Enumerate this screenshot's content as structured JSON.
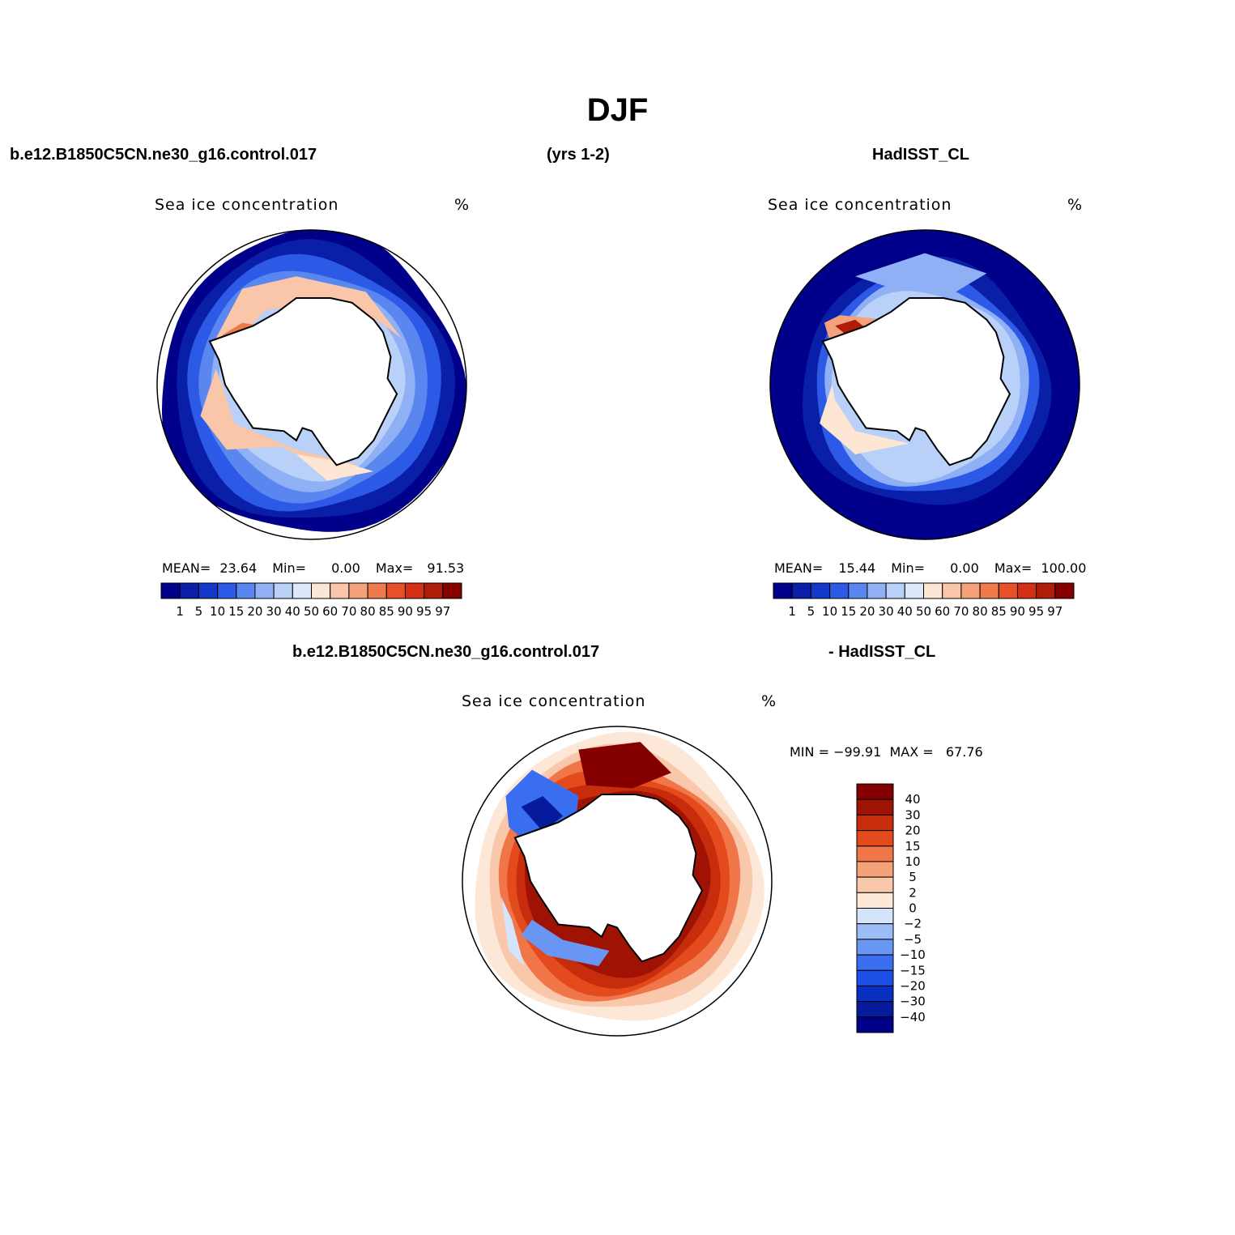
{
  "figure": {
    "title": "DJF",
    "case_name": "b.e12.B1850C5CN.ne30_g16.control.017",
    "period": "(yrs 1-2)",
    "obs_name": "HadISST_CL",
    "diff_case_name": "b.e12.B1850C5CN.ne30_g16.control.017",
    "diff_obs_name": "- HadISST_CL"
  },
  "colors": {
    "seq": [
      "#00008b",
      "#0a1fa8",
      "#1438c8",
      "#2c5ae6",
      "#5a86f0",
      "#8fb0f5",
      "#b9d0f8",
      "#dde9fb",
      "#fde6d3",
      "#f9c6a9",
      "#f5a17b",
      "#ef7b4d",
      "#e8502a",
      "#d42f14",
      "#b01c0a",
      "#850000"
    ],
    "diff": [
      "#00008b",
      "#061b9c",
      "#0a2fc0",
      "#1c4fe6",
      "#3a6ef0",
      "#6a96f3",
      "#9dbdf6",
      "#d4e4fb",
      "#fde8d8",
      "#f9c8aa",
      "#f5a179",
      "#f07548",
      "#e34a1c",
      "#c72c0c",
      "#a01304",
      "#840000"
    ],
    "coast": "#000000",
    "frame": "#000000"
  },
  "chart_data": [
    {
      "type": "heatmap",
      "projection": "south-polar-stereographic",
      "label": "model",
      "variable": "Sea ice concentration",
      "units": "%",
      "stats": {
        "mean_label": "MEAN=",
        "mean": "23.64",
        "min_label": "Min=",
        "min": "0.00",
        "max_label": "Max=",
        "max": "91.53"
      },
      "levels": [
        "1",
        "5",
        "10",
        "15",
        "20",
        "30",
        "40",
        "50",
        "60",
        "70",
        "80",
        "85",
        "90",
        "95",
        "97"
      ],
      "colorbar_orientation": "horizontal",
      "legend_placement": "bottom"
    },
    {
      "type": "heatmap",
      "projection": "south-polar-stereographic",
      "label": "observations",
      "variable": "Sea ice concentration",
      "units": "%",
      "stats": {
        "mean_label": "MEAN=",
        "mean": "15.44",
        "min_label": "Min=",
        "min": "0.00",
        "max_label": "Max=",
        "max": "100.00"
      },
      "levels": [
        "1",
        "5",
        "10",
        "15",
        "20",
        "30",
        "40",
        "50",
        "60",
        "70",
        "80",
        "85",
        "90",
        "95",
        "97"
      ],
      "colorbar_orientation": "horizontal",
      "legend_placement": "bottom"
    },
    {
      "type": "heatmap",
      "projection": "south-polar-stereographic",
      "label": "difference",
      "variable": "Sea ice concentration",
      "units": "%",
      "stats_text": "MIN = −99.91  MAX =   67.76",
      "levels": [
        "40",
        "30",
        "20",
        "15",
        "10",
        "5",
        "2",
        "0",
        "−2",
        "−5",
        "−10",
        "−15",
        "−20",
        "−30",
        "−40"
      ],
      "colorbar_orientation": "vertical",
      "legend_placement": "right"
    }
  ]
}
